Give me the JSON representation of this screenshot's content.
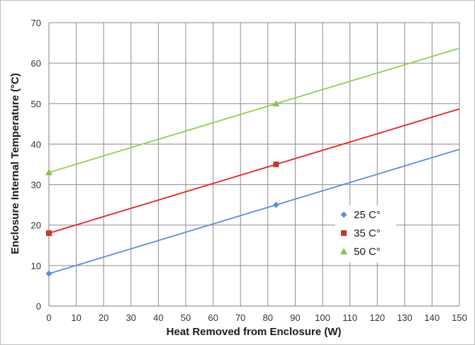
{
  "chart_data": {
    "type": "line",
    "title": "",
    "xlabel": "Heat Removed from Enclosure (W)",
    "ylabel": "Enclosure Internal Temperature (°C)",
    "xlim": [
      0,
      150
    ],
    "ylim": [
      0,
      70
    ],
    "x_ticks": [
      "0",
      "10",
      "20",
      "30",
      "40",
      "50",
      "60",
      "70",
      "80",
      "90",
      "100",
      "110",
      "120",
      "130",
      "140",
      "150"
    ],
    "y_ticks": [
      "0",
      "10",
      "20",
      "30",
      "40",
      "50",
      "60",
      "70"
    ],
    "grid": true,
    "legend_position": "right-center",
    "series": [
      {
        "name": "25 C°",
        "color": "#5b8fd6",
        "marker": "diamond",
        "line": [
          [
            0,
            8
          ],
          [
            150,
            38.7
          ]
        ],
        "points": [
          [
            0,
            8
          ],
          [
            83,
            25
          ]
        ]
      },
      {
        "name": "35 C°",
        "color": "#e8201c",
        "marker": "square",
        "marker_color": "#c0392b",
        "line": [
          [
            0,
            18
          ],
          [
            150,
            48.7
          ]
        ],
        "points": [
          [
            0,
            18
          ],
          [
            83,
            35
          ]
        ]
      },
      {
        "name": "50 C°",
        "color": "#92d050",
        "marker": "triangle",
        "marker_color": "#8cc152",
        "line": [
          [
            0,
            33
          ],
          [
            150,
            63.7
          ]
        ],
        "points": [
          [
            0,
            33
          ],
          [
            83,
            50
          ]
        ]
      }
    ]
  }
}
